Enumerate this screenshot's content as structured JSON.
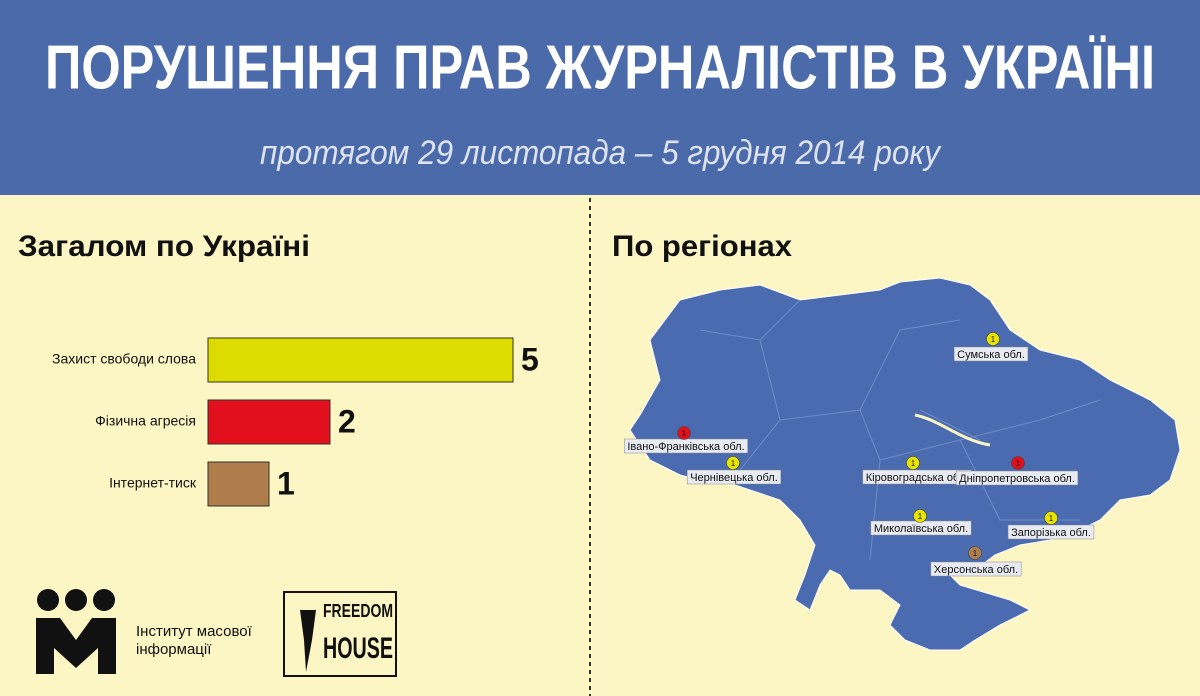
{
  "header": {
    "title": "ПОРУШЕННЯ ПРАВ ЖУРНАЛІСТІВ В УКРАЇНІ",
    "subtitle": "протягом 29 листопада – 5 грудня 2014 року"
  },
  "chart_data": {
    "type": "hbar",
    "title": "Загалом по Україні",
    "categories": [
      "Захист свободи слова",
      "Фізична агресія",
      "Інтернет-тиск"
    ],
    "values": [
      5,
      2,
      1
    ],
    "colors": [
      "#dcdc00",
      "#e2101c",
      "#ae7d4b"
    ]
  },
  "map": {
    "title": "По регіонах",
    "fill": "#4a6bb0",
    "markers": [
      {
        "label": "Сумська обл.",
        "value": 1,
        "color": "#e8e400"
      },
      {
        "label": "Івано-Франківська обл.",
        "value": 1,
        "color": "#e2101c"
      },
      {
        "label": "Чернівецька обл.",
        "value": 1,
        "color": "#e8e400"
      },
      {
        "label": "Кіровоградська обл.",
        "value": 1,
        "color": "#e8e400"
      },
      {
        "label": "Дніпропетровська обл.",
        "value": 1,
        "color": "#e2101c"
      },
      {
        "label": "Миколаївська обл.",
        "value": 1,
        "color": "#e8e400"
      },
      {
        "label": "Запорізька обл.",
        "value": 1,
        "color": "#e8e400"
      },
      {
        "label": "Херсонська обл.",
        "value": 1,
        "color": "#ae7d4b"
      }
    ]
  },
  "logos": {
    "imi_line1": "Інститут масової",
    "imi_line2": "інформації",
    "fh_line1": "FREEDOM",
    "fh_line2": "HOUSE"
  }
}
